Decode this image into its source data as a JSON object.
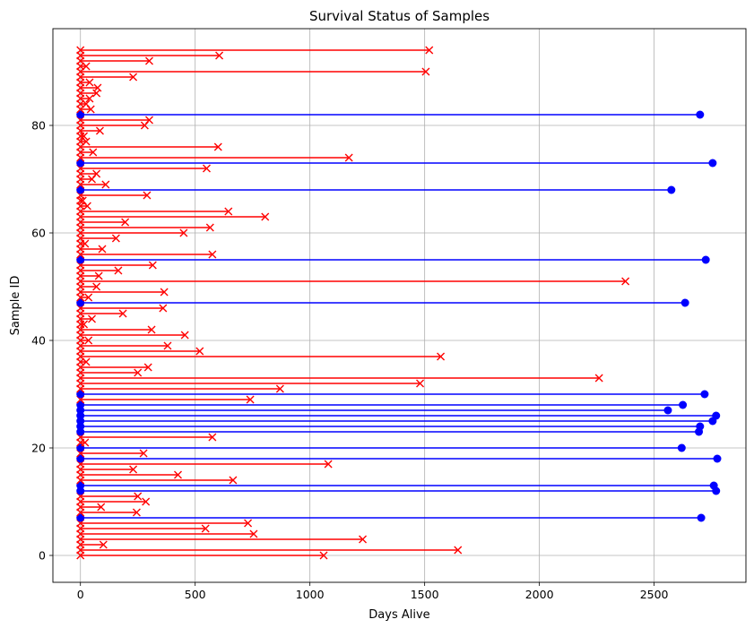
{
  "chart_data": {
    "type": "scatter",
    "title": "Survival Status of Samples",
    "xlabel": "Days Alive",
    "ylabel": "Sample ID",
    "xlim": [
      -120,
      2900
    ],
    "ylim": [
      -5,
      98
    ],
    "x_ticks": [
      "0",
      "500",
      "1000",
      "1500",
      "2000",
      "2500"
    ],
    "x_tick_values": [
      0,
      500,
      1000,
      1500,
      2000,
      2500
    ],
    "y_ticks": [
      "0",
      "20",
      "40",
      "60",
      "80"
    ],
    "y_tick_values": [
      0,
      20,
      40,
      60,
      80
    ],
    "grid": true,
    "colors": {
      "deceased": "#ff0000",
      "alive": "#0000ff"
    },
    "markers": {
      "deceased": "x",
      "alive": "circle"
    },
    "samples": [
      {
        "id": 0,
        "days": 1060,
        "status": "deceased"
      },
      {
        "id": 1,
        "days": 1645,
        "status": "deceased"
      },
      {
        "id": 2,
        "days": 100,
        "status": "deceased"
      },
      {
        "id": 3,
        "days": 1230,
        "status": "deceased"
      },
      {
        "id": 4,
        "days": 755,
        "status": "deceased"
      },
      {
        "id": 5,
        "days": 545,
        "status": "deceased"
      },
      {
        "id": 6,
        "days": 730,
        "status": "deceased"
      },
      {
        "id": 7,
        "days": 2705,
        "status": "alive"
      },
      {
        "id": 8,
        "days": 245,
        "status": "deceased"
      },
      {
        "id": 9,
        "days": 90,
        "status": "deceased"
      },
      {
        "id": 10,
        "days": 285,
        "status": "deceased"
      },
      {
        "id": 11,
        "days": 250,
        "status": "deceased"
      },
      {
        "id": 12,
        "days": 2770,
        "status": "alive"
      },
      {
        "id": 13,
        "days": 2760,
        "status": "alive"
      },
      {
        "id": 14,
        "days": 665,
        "status": "deceased"
      },
      {
        "id": 15,
        "days": 425,
        "status": "deceased"
      },
      {
        "id": 16,
        "days": 230,
        "status": "deceased"
      },
      {
        "id": 17,
        "days": 1080,
        "status": "deceased"
      },
      {
        "id": 18,
        "days": 2775,
        "status": "alive"
      },
      {
        "id": 19,
        "days": 275,
        "status": "deceased"
      },
      {
        "id": 20,
        "days": 2620,
        "status": "alive"
      },
      {
        "id": 21,
        "days": 20,
        "status": "deceased"
      },
      {
        "id": 22,
        "days": 575,
        "status": "deceased"
      },
      {
        "id": 23,
        "days": 2695,
        "status": "alive"
      },
      {
        "id": 24,
        "days": 2700,
        "status": "alive"
      },
      {
        "id": 25,
        "days": 2755,
        "status": "alive"
      },
      {
        "id": 26,
        "days": 2770,
        "status": "alive"
      },
      {
        "id": 27,
        "days": 2560,
        "status": "alive"
      },
      {
        "id": 28,
        "days": 2625,
        "status": "alive"
      },
      {
        "id": 29,
        "days": 740,
        "status": "deceased"
      },
      {
        "id": 30,
        "days": 2720,
        "status": "alive"
      },
      {
        "id": 31,
        "days": 870,
        "status": "deceased"
      },
      {
        "id": 32,
        "days": 1480,
        "status": "deceased"
      },
      {
        "id": 33,
        "days": 2260,
        "status": "deceased"
      },
      {
        "id": 34,
        "days": 250,
        "status": "deceased"
      },
      {
        "id": 35,
        "days": 295,
        "status": "deceased"
      },
      {
        "id": 36,
        "days": 25,
        "status": "deceased"
      },
      {
        "id": 37,
        "days": 1570,
        "status": "deceased"
      },
      {
        "id": 38,
        "days": 520,
        "status": "deceased"
      },
      {
        "id": 39,
        "days": 380,
        "status": "deceased"
      },
      {
        "id": 40,
        "days": 35,
        "status": "deceased"
      },
      {
        "id": 41,
        "days": 455,
        "status": "deceased"
      },
      {
        "id": 42,
        "days": 310,
        "status": "deceased"
      },
      {
        "id": 43,
        "days": 15,
        "status": "deceased"
      },
      {
        "id": 44,
        "days": 50,
        "status": "deceased"
      },
      {
        "id": 45,
        "days": 185,
        "status": "deceased"
      },
      {
        "id": 46,
        "days": 360,
        "status": "deceased"
      },
      {
        "id": 47,
        "days": 2635,
        "status": "alive"
      },
      {
        "id": 48,
        "days": 35,
        "status": "deceased"
      },
      {
        "id": 49,
        "days": 365,
        "status": "deceased"
      },
      {
        "id": 50,
        "days": 70,
        "status": "deceased"
      },
      {
        "id": 51,
        "days": 2375,
        "status": "deceased"
      },
      {
        "id": 52,
        "days": 80,
        "status": "deceased"
      },
      {
        "id": 53,
        "days": 165,
        "status": "deceased"
      },
      {
        "id": 54,
        "days": 315,
        "status": "deceased"
      },
      {
        "id": 55,
        "days": 2725,
        "status": "alive"
      },
      {
        "id": 56,
        "days": 575,
        "status": "deceased"
      },
      {
        "id": 57,
        "days": 95,
        "status": "deceased"
      },
      {
        "id": 58,
        "days": 20,
        "status": "deceased"
      },
      {
        "id": 59,
        "days": 155,
        "status": "deceased"
      },
      {
        "id": 60,
        "days": 450,
        "status": "deceased"
      },
      {
        "id": 61,
        "days": 565,
        "status": "deceased"
      },
      {
        "id": 62,
        "days": 195,
        "status": "deceased"
      },
      {
        "id": 63,
        "days": 805,
        "status": "deceased"
      },
      {
        "id": 64,
        "days": 645,
        "status": "deceased"
      },
      {
        "id": 65,
        "days": 30,
        "status": "deceased"
      },
      {
        "id": 66,
        "days": 10,
        "status": "deceased"
      },
      {
        "id": 67,
        "days": 290,
        "status": "deceased"
      },
      {
        "id": 68,
        "days": 2575,
        "status": "alive"
      },
      {
        "id": 69,
        "days": 110,
        "status": "deceased"
      },
      {
        "id": 70,
        "days": 50,
        "status": "deceased"
      },
      {
        "id": 71,
        "days": 70,
        "status": "deceased"
      },
      {
        "id": 72,
        "days": 550,
        "status": "deceased"
      },
      {
        "id": 73,
        "days": 2755,
        "status": "alive"
      },
      {
        "id": 74,
        "days": 1170,
        "status": "deceased"
      },
      {
        "id": 75,
        "days": 55,
        "status": "deceased"
      },
      {
        "id": 76,
        "days": 600,
        "status": "deceased"
      },
      {
        "id": 77,
        "days": 25,
        "status": "deceased"
      },
      {
        "id": 78,
        "days": 15,
        "status": "deceased"
      },
      {
        "id": 79,
        "days": 85,
        "status": "deceased"
      },
      {
        "id": 80,
        "days": 280,
        "status": "deceased"
      },
      {
        "id": 81,
        "days": 300,
        "status": "deceased"
      },
      {
        "id": 82,
        "days": 2700,
        "status": "alive"
      },
      {
        "id": 83,
        "days": 45,
        "status": "deceased"
      },
      {
        "id": 84,
        "days": 25,
        "status": "deceased"
      },
      {
        "id": 85,
        "days": 40,
        "status": "deceased"
      },
      {
        "id": 86,
        "days": 70,
        "status": "deceased"
      },
      {
        "id": 87,
        "days": 75,
        "status": "deceased"
      },
      {
        "id": 88,
        "days": 40,
        "status": "deceased"
      },
      {
        "id": 89,
        "days": 230,
        "status": "deceased"
      },
      {
        "id": 90,
        "days": 1505,
        "status": "deceased"
      },
      {
        "id": 91,
        "days": 25,
        "status": "deceased"
      },
      {
        "id": 92,
        "days": 300,
        "status": "deceased"
      },
      {
        "id": 93,
        "days": 605,
        "status": "deceased"
      },
      {
        "id": 94,
        "days": 1520,
        "status": "deceased"
      }
    ]
  }
}
